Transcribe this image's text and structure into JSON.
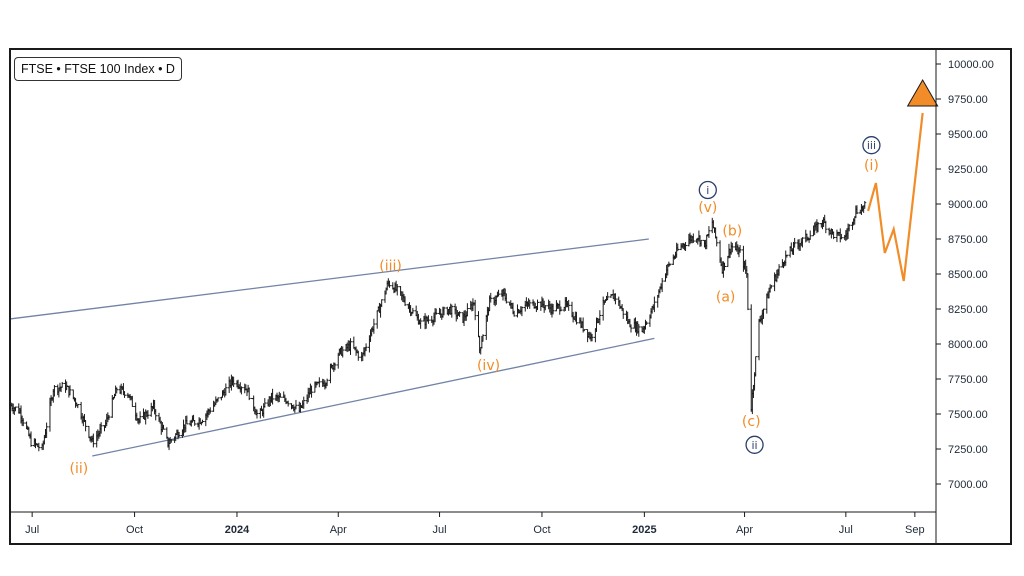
{
  "title": "FTSE • FTSE 100 Index • D",
  "colors": {
    "candles": "#1a1a1a",
    "channel": "#7183a6",
    "orange": "#f28c28",
    "navy": "#2b3f6b"
  },
  "chart_data": {
    "type": "bar",
    "description_type": "ohlc-daily",
    "x_range": [
      "2023-06-12",
      "2025-09-20"
    ],
    "ylim": [
      6800,
      10100
    ],
    "yticks": [
      7000,
      7250,
      7500,
      7750,
      8000,
      8250,
      8500,
      8750,
      9000,
      9250,
      9500,
      9750,
      10000
    ],
    "ytick_labels": [
      "7000.00",
      "7250.00",
      "7500.00",
      "7750.00",
      "8000.00",
      "8250.00",
      "8500.00",
      "8750.00",
      "9000.00",
      "9250.00",
      "9500.00",
      "9750.00",
      "10000.00"
    ],
    "xticks": [
      {
        "date": "2023-07-01",
        "label": "Jul",
        "bold": false
      },
      {
        "date": "2023-10-01",
        "label": "Oct",
        "bold": false
      },
      {
        "date": "2024-01-01",
        "label": "2024",
        "bold": true
      },
      {
        "date": "2024-04-01",
        "label": "Apr",
        "bold": false
      },
      {
        "date": "2024-07-01",
        "label": "Jul",
        "bold": false
      },
      {
        "date": "2024-10-01",
        "label": "Oct",
        "bold": false
      },
      {
        "date": "2025-01-01",
        "label": "2025",
        "bold": true
      },
      {
        "date": "2025-04-01",
        "label": "Apr",
        "bold": false
      },
      {
        "date": "2025-07-01",
        "label": "Jul",
        "bold": false
      },
      {
        "date": "2025-09-01",
        "label": "Sep",
        "bold": false
      }
    ],
    "price_path": [
      [
        "2023-06-12",
        7560
      ],
      [
        "2023-06-20",
        7520
      ],
      [
        "2023-06-30",
        7300
      ],
      [
        "2023-07-10",
        7250
      ],
      [
        "2023-07-20",
        7680
      ],
      [
        "2023-07-31",
        7700
      ],
      [
        "2023-08-10",
        7580
      ],
      [
        "2023-08-24",
        7300
      ],
      [
        "2023-09-05",
        7430
      ],
      [
        "2023-09-15",
        7680
      ],
      [
        "2023-09-25",
        7650
      ],
      [
        "2023-10-05",
        7450
      ],
      [
        "2023-10-18",
        7550
      ],
      [
        "2023-10-31",
        7290
      ],
      [
        "2023-11-15",
        7420
      ],
      [
        "2023-11-30",
        7460
      ],
      [
        "2023-12-15",
        7600
      ],
      [
        "2023-12-28",
        7740
      ],
      [
        "2024-01-10",
        7680
      ],
      [
        "2024-01-20",
        7480
      ],
      [
        "2024-02-01",
        7620
      ],
      [
        "2024-02-15",
        7600
      ],
      [
        "2024-02-26",
        7520
      ],
      [
        "2024-03-08",
        7680
      ],
      [
        "2024-03-20",
        7730
      ],
      [
        "2024-04-01",
        7930
      ],
      [
        "2024-04-12",
        7990
      ],
      [
        "2024-04-22",
        7900
      ],
      [
        "2024-05-01",
        8100
      ],
      [
        "2024-05-10",
        8300
      ],
      [
        "2024-05-16",
        8440
      ],
      [
        "2024-05-24",
        8380
      ],
      [
        "2024-06-05",
        8250
      ],
      [
        "2024-06-14",
        8150
      ],
      [
        "2024-06-28",
        8200
      ],
      [
        "2024-07-10",
        8250
      ],
      [
        "2024-07-22",
        8180
      ],
      [
        "2024-08-01",
        8300
      ],
      [
        "2024-08-06",
        7960
      ],
      [
        "2024-08-15",
        8300
      ],
      [
        "2024-08-27",
        8360
      ],
      [
        "2024-09-06",
        8230
      ],
      [
        "2024-09-18",
        8280
      ],
      [
        "2024-09-30",
        8290
      ],
      [
        "2024-10-10",
        8250
      ],
      [
        "2024-10-22",
        8280
      ],
      [
        "2024-11-01",
        8180
      ],
      [
        "2024-11-14",
        8050
      ],
      [
        "2024-11-25",
        8280
      ],
      [
        "2024-12-05",
        8350
      ],
      [
        "2024-12-18",
        8150
      ],
      [
        "2024-12-30",
        8100
      ],
      [
        "2025-01-10",
        8280
      ],
      [
        "2025-01-20",
        8520
      ],
      [
        "2025-01-31",
        8670
      ],
      [
        "2025-02-10",
        8750
      ],
      [
        "2025-02-18",
        8770
      ],
      [
        "2025-02-24",
        8700
      ],
      [
        "2025-03-03",
        8870
      ],
      [
        "2025-03-12",
        8540
      ],
      [
        "2025-03-20",
        8700
      ],
      [
        "2025-03-28",
        8650
      ],
      [
        "2025-04-03",
        8500
      ],
      [
        "2025-04-07",
        7550
      ],
      [
        "2025-04-14",
        8150
      ],
      [
        "2025-04-24",
        8400
      ],
      [
        "2025-05-06",
        8600
      ],
      [
        "2025-05-16",
        8700
      ],
      [
        "2025-05-30",
        8780
      ],
      [
        "2025-06-10",
        8880
      ],
      [
        "2025-06-20",
        8780
      ],
      [
        "2025-06-30",
        8760
      ],
      [
        "2025-07-10",
        8950
      ],
      [
        "2025-07-18",
        8980
      ]
    ],
    "channel_lines": [
      {
        "from": [
          "2023-06-12",
          8180
        ],
        "to": [
          "2025-01-05",
          8750
        ]
      },
      {
        "from": [
          "2023-08-24",
          7200
        ],
        "to": [
          "2025-01-10",
          8040
        ]
      }
    ],
    "projection": [
      [
        "2025-07-21",
        8950
      ],
      [
        "2025-07-28",
        9150
      ],
      [
        "2025-08-05",
        8650
      ],
      [
        "2025-08-13",
        8820
      ],
      [
        "2025-08-22",
        8450
      ],
      [
        "2025-09-08",
        9650
      ]
    ],
    "projection_arrow": {
      "date": "2025-09-08",
      "value": 9700
    },
    "wave_labels": [
      {
        "text": "(ii)",
        "date": "2023-08-12",
        "value": 7115,
        "style": "orange"
      },
      {
        "text": "(iii)",
        "date": "2024-05-18",
        "value": 8560,
        "style": "orange"
      },
      {
        "text": "(iv)",
        "date": "2024-08-14",
        "value": 7850,
        "style": "orange"
      },
      {
        "text": "(v)",
        "date": "2025-02-27",
        "value": 8980,
        "style": "orange"
      },
      {
        "text": "(b)",
        "date": "2025-03-21",
        "value": 8810,
        "style": "orange"
      },
      {
        "text": "(a)",
        "date": "2025-03-15",
        "value": 8340,
        "style": "orange"
      },
      {
        "text": "(c)",
        "date": "2025-04-07",
        "value": 7450,
        "style": "orange"
      },
      {
        "text": "(i)",
        "date": "2025-07-24",
        "value": 9280,
        "style": "orange"
      },
      {
        "text": "i",
        "date": "2025-02-27",
        "value": 9100,
        "style": "navy"
      },
      {
        "text": "ii",
        "date": "2025-04-10",
        "value": 7280,
        "style": "navy"
      },
      {
        "text": "iii",
        "date": "2025-07-24",
        "value": 9420,
        "style": "navy"
      }
    ]
  }
}
